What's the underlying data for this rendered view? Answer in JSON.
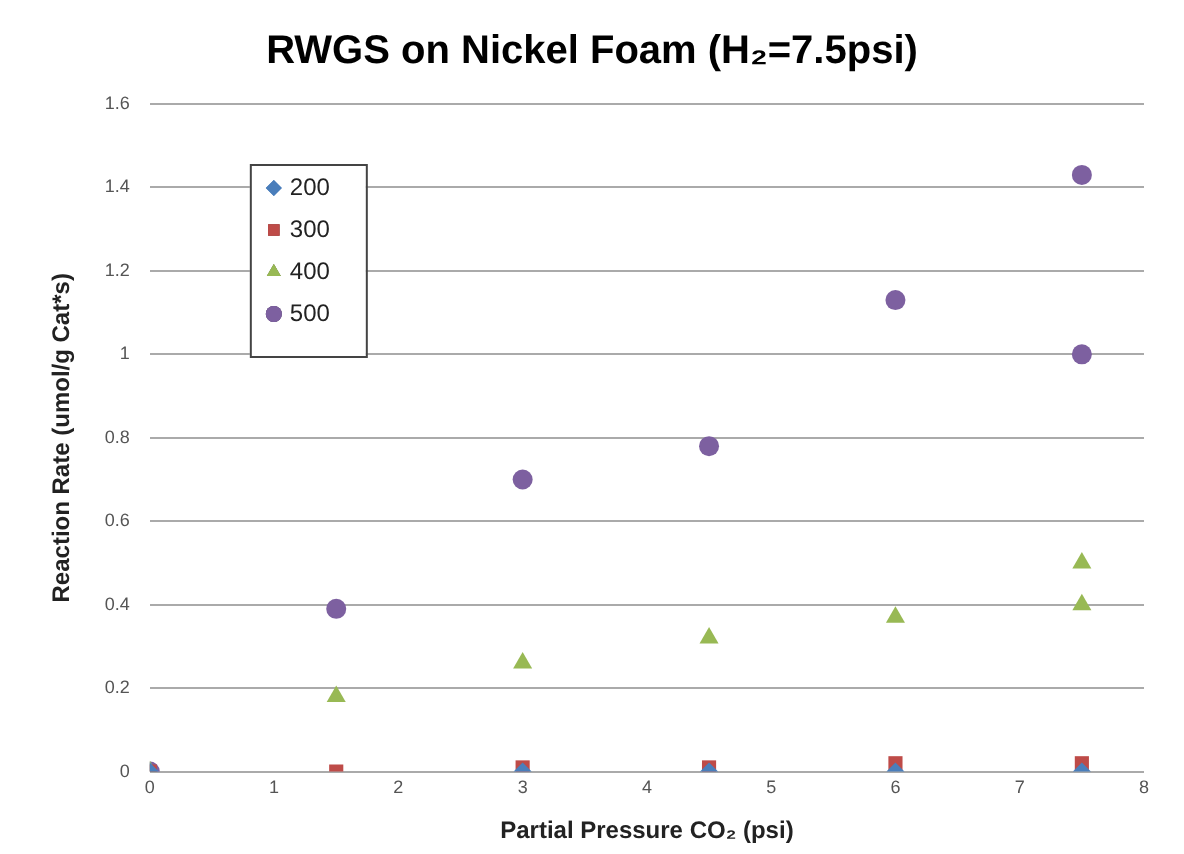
{
  "chart_data": {
    "type": "scatter",
    "title": "RWGS on Nickel Foam (H₂=7.5psi)",
    "xlabel": "Partial Pressure CO₂ (psi)",
    "ylabel": "Reaction Rate (umol/g Cat*s)",
    "xlim": [
      0,
      8
    ],
    "xticks": [
      0,
      1,
      2,
      3,
      4,
      5,
      6,
      7,
      8
    ],
    "ylim": [
      0,
      1.6
    ],
    "yticks": [
      0,
      0.2,
      0.4,
      0.6,
      0.8,
      1,
      1.2,
      1.4,
      1.6
    ],
    "grid": "y",
    "legend": "top left",
    "series": [
      {
        "name": "200",
        "color": "#4a7ebb",
        "marker": "diamond",
        "x": [
          0,
          3,
          4.5,
          6,
          7.5
        ],
        "values": [
          0,
          0,
          0,
          0,
          0
        ]
      },
      {
        "name": "300",
        "color": "#be4b48",
        "marker": "square",
        "x": [
          0,
          1.5,
          3,
          4.5,
          6,
          7.5
        ],
        "values": [
          0,
          0,
          0.01,
          0.01,
          0.02,
          0.02
        ]
      },
      {
        "name": "400",
        "color": "#98b954",
        "marker": "triangle",
        "x": [
          0,
          1.5,
          3,
          4.5,
          6,
          7.5,
          7.5
        ],
        "values": [
          0,
          0.18,
          0.26,
          0.32,
          0.37,
          0.5,
          0.4
        ]
      },
      {
        "name": "500",
        "color": "#7d60a0",
        "marker": "circle",
        "x": [
          0,
          1.5,
          3,
          4.5,
          6,
          7.5,
          7.5
        ],
        "values": [
          0,
          0.39,
          0.7,
          0.78,
          1.13,
          1.43,
          1.0
        ]
      }
    ]
  }
}
